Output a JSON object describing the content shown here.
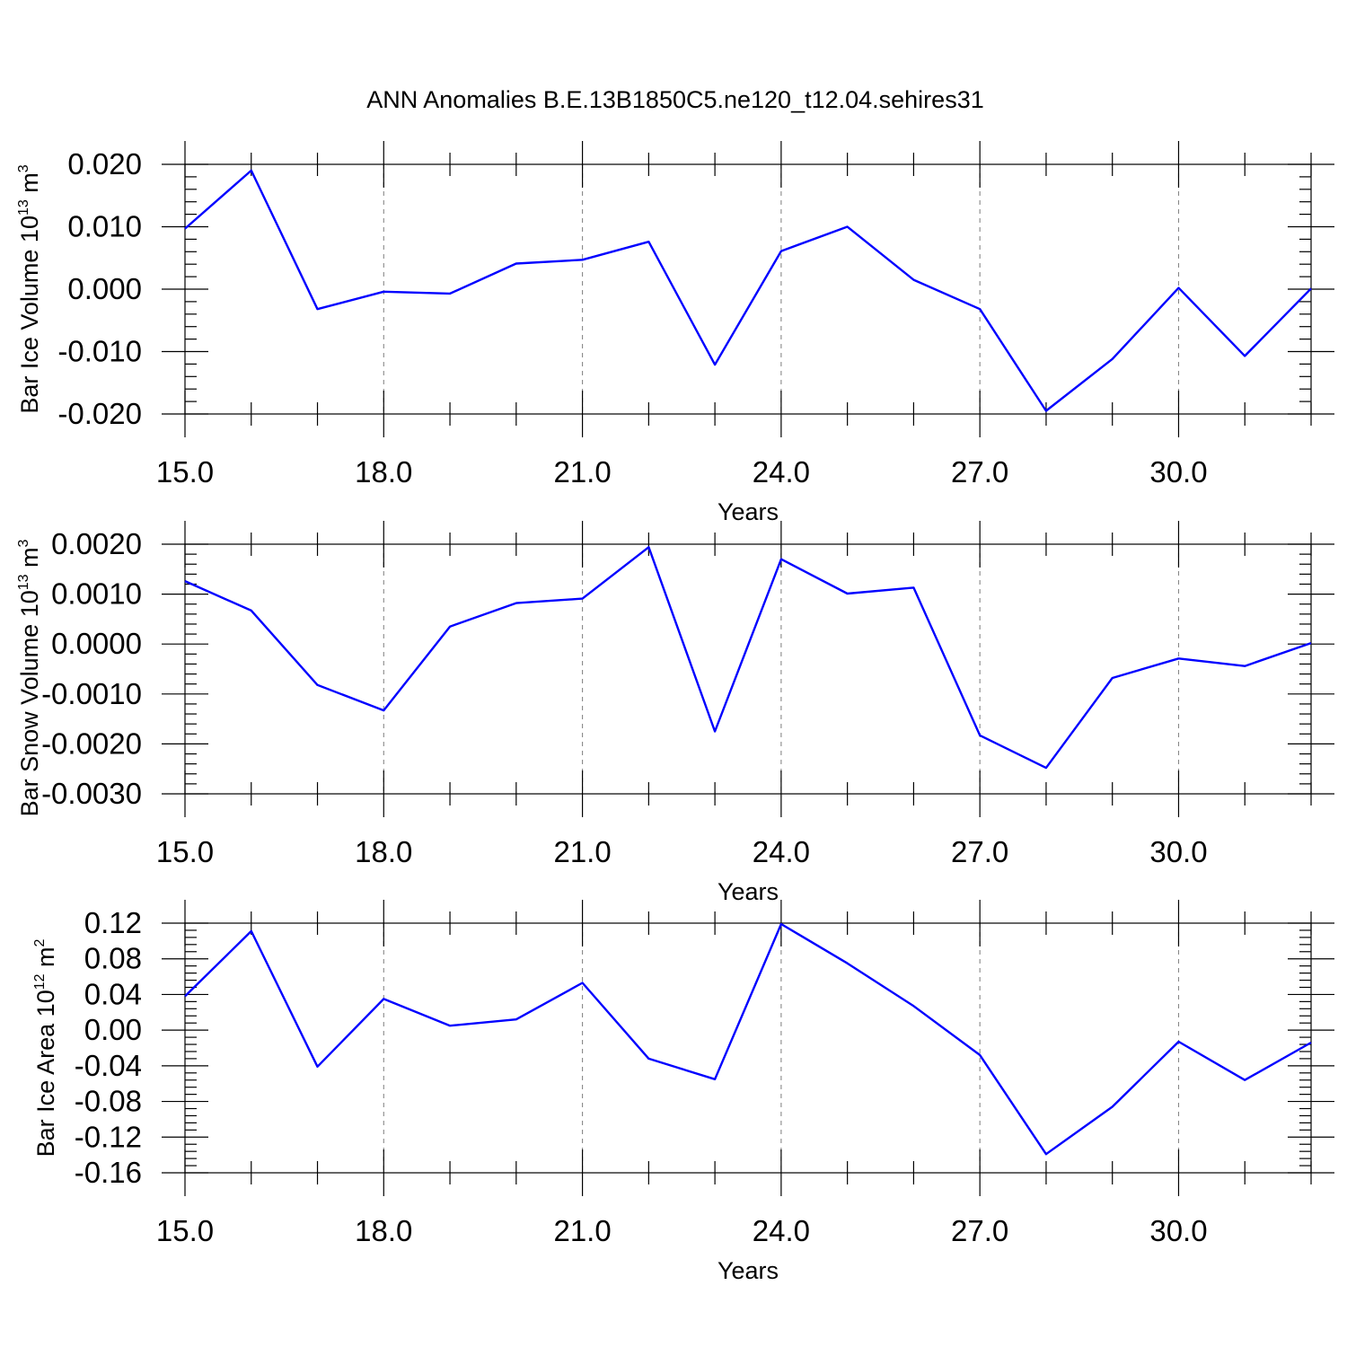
{
  "title": "ANN Anomalies B.E.13B1850C5.ne120_t12.04.sehires31",
  "colors": {
    "series": "#0000ff",
    "grid": "#888888",
    "axis": "#000000"
  },
  "chart_data": [
    {
      "type": "line",
      "ylabel": "Bar Ice Volume 10",
      "ylabel_exp": "13",
      "ylabel_unit": " m",
      "ylabel_unit_exp": "3",
      "xlabel": "Years",
      "xlim": [
        15,
        32
      ],
      "ylim": [
        -0.02,
        0.02
      ],
      "xticks": [
        15,
        18,
        21,
        24,
        27,
        30
      ],
      "xticklabels": [
        "15.0",
        "18.0",
        "21.0",
        "24.0",
        "27.0",
        "30.0"
      ],
      "yticks": [
        0.02,
        0.01,
        0.0,
        -0.01,
        -0.02
      ],
      "yticklabels": [
        "0.020",
        "0.010",
        "0.000",
        "-0.010",
        "-0.020"
      ],
      "grid": "vertical dashed at major x ticks",
      "x": [
        15,
        16,
        17,
        18,
        19,
        20,
        21,
        22,
        23,
        24,
        25,
        26,
        27,
        28,
        29,
        30,
        31,
        32
      ],
      "values": [
        0.0097,
        0.019,
        -0.0032,
        -0.0004,
        -0.0007,
        0.0041,
        0.0047,
        0.0076,
        -0.0121,
        0.0061,
        0.01,
        0.0015,
        -0.0032,
        -0.0195,
        -0.0112,
        0.0002,
        -0.0107,
        0.0001
      ]
    },
    {
      "type": "line",
      "ylabel": "Bar Snow Volume 10",
      "ylabel_exp": "13",
      "ylabel_unit": " m",
      "ylabel_unit_exp": "3",
      "xlabel": "Years",
      "xlim": [
        15,
        32
      ],
      "ylim": [
        -0.003,
        0.002
      ],
      "xticks": [
        15,
        18,
        21,
        24,
        27,
        30
      ],
      "xticklabels": [
        "15.0",
        "18.0",
        "21.0",
        "24.0",
        "27.0",
        "30.0"
      ],
      "yticks": [
        0.002,
        0.001,
        0.0,
        -0.001,
        -0.002,
        -0.003
      ],
      "yticklabels": [
        "0.0020",
        "0.0010",
        "0.0000",
        "-0.0010",
        "-0.0020",
        "-0.0030"
      ],
      "grid": "vertical dashed at major x ticks",
      "x": [
        15,
        16,
        17,
        18,
        19,
        20,
        21,
        22,
        23,
        24,
        25,
        26,
        27,
        28,
        29,
        30,
        31,
        32
      ],
      "values": [
        0.00126,
        0.00067,
        -0.00082,
        -0.00133,
        0.00035,
        0.00082,
        0.00091,
        0.00194,
        -0.00175,
        0.0017,
        0.00101,
        0.00113,
        -0.00183,
        -0.00248,
        -0.00068,
        -0.00029,
        -0.00044,
        2e-05
      ]
    },
    {
      "type": "line",
      "ylabel": "Bar Ice Area 10",
      "ylabel_exp": "12",
      "ylabel_unit": " m",
      "ylabel_unit_exp": "2",
      "xlabel": "Years",
      "xlim": [
        15,
        32
      ],
      "ylim": [
        -0.16,
        0.12
      ],
      "xticks": [
        15,
        18,
        21,
        24,
        27,
        30
      ],
      "xticklabels": [
        "15.0",
        "18.0",
        "21.0",
        "24.0",
        "27.0",
        "30.0"
      ],
      "yticks": [
        0.12,
        0.08,
        0.04,
        0.0,
        -0.04,
        -0.08,
        -0.12,
        -0.16
      ],
      "yticklabels": [
        "0.12",
        "0.08",
        "0.04",
        "0.00",
        "-0.04",
        "-0.08",
        "-0.12",
        "-0.16"
      ],
      "grid": "vertical dashed at major x ticks",
      "x": [
        15,
        16,
        17,
        18,
        19,
        20,
        21,
        22,
        23,
        24,
        25,
        26,
        27,
        28,
        29,
        30,
        31,
        32
      ],
      "values": [
        0.038,
        0.111,
        -0.041,
        0.035,
        0.005,
        0.012,
        0.053,
        -0.032,
        -0.055,
        0.119,
        0.075,
        0.027,
        -0.028,
        -0.139,
        -0.086,
        -0.013,
        -0.056,
        -0.014
      ]
    }
  ]
}
